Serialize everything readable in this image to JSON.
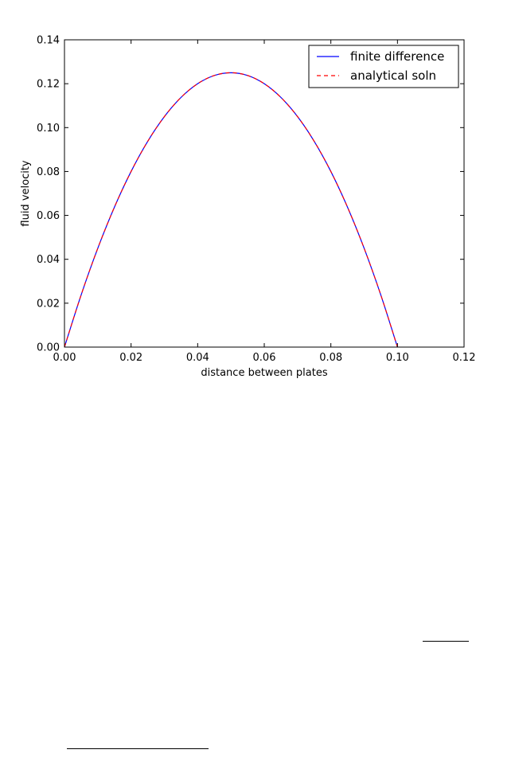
{
  "chart_data": {
    "type": "line",
    "xlabel": "distance between plates",
    "ylabel": "fluid velocity",
    "xlim": [
      0.0,
      0.12
    ],
    "ylim": [
      0.0,
      0.14
    ],
    "xticks": [
      "0.00",
      "0.02",
      "0.04",
      "0.06",
      "0.08",
      "0.10",
      "0.12"
    ],
    "yticks": [
      "0.00",
      "0.02",
      "0.04",
      "0.06",
      "0.08",
      "0.10",
      "0.12",
      "0.14"
    ],
    "x": [
      0.0,
      0.005,
      0.01,
      0.015,
      0.02,
      0.025,
      0.03,
      0.035,
      0.04,
      0.045,
      0.05,
      0.055,
      0.06,
      0.065,
      0.07,
      0.075,
      0.08,
      0.085,
      0.09,
      0.095,
      0.1
    ],
    "series": [
      {
        "name": "finite difference",
        "color": "#0000ff",
        "style": "solid",
        "values": [
          0.0,
          0.02375,
          0.045,
          0.06375,
          0.08,
          0.09375,
          0.105,
          0.11375,
          0.12,
          0.12375,
          0.125,
          0.12375,
          0.12,
          0.11375,
          0.105,
          0.09375,
          0.08,
          0.06375,
          0.045,
          0.02375,
          0.0
        ]
      },
      {
        "name": "analytical soln",
        "color": "#ff0000",
        "style": "dashed",
        "values": [
          0.0,
          0.02375,
          0.045,
          0.06375,
          0.08,
          0.09375,
          0.105,
          0.11375,
          0.12,
          0.12375,
          0.125,
          0.12375,
          0.12,
          0.11375,
          0.105,
          0.09375,
          0.08,
          0.06375,
          0.045,
          0.02375,
          0.0
        ]
      }
    ],
    "grid": false,
    "legend_position": "top-right"
  }
}
